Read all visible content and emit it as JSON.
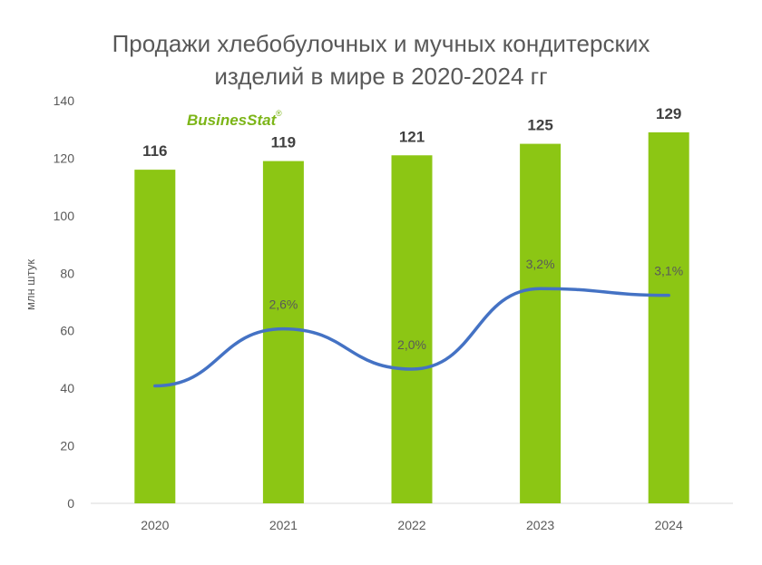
{
  "title_line1": "Продажи хлебобулочных и мучных кондитерских",
  "title_line2": "изделий в мире в 2020-2024 гг",
  "logo_text": "BusinesStat",
  "logo_mark": "®",
  "colors": {
    "bar": "#8CC614",
    "line": "#4472C4",
    "logo": "#7CB518",
    "axis": "#D9D9D9",
    "text": "#595959"
  },
  "chart_data": {
    "type": "bar",
    "categories": [
      "2020",
      "2021",
      "2022",
      "2023",
      "2024"
    ],
    "values": [
      116,
      119,
      121,
      125,
      129
    ],
    "value_labels": [
      "116",
      "119",
      "121",
      "125",
      "129"
    ],
    "ylabel": "млн  штук",
    "ylim": [
      0,
      140
    ],
    "yticks": [
      "0",
      "20",
      "40",
      "60",
      "80",
      "100",
      "120",
      "140"
    ],
    "grid": false,
    "growth": {
      "type": "line",
      "values": [
        null,
        2.6,
        2.0,
        3.2,
        3.1
      ],
      "labels": [
        "",
        "2,6%",
        "2,0%",
        "3,2%",
        "3,1%"
      ]
    }
  }
}
